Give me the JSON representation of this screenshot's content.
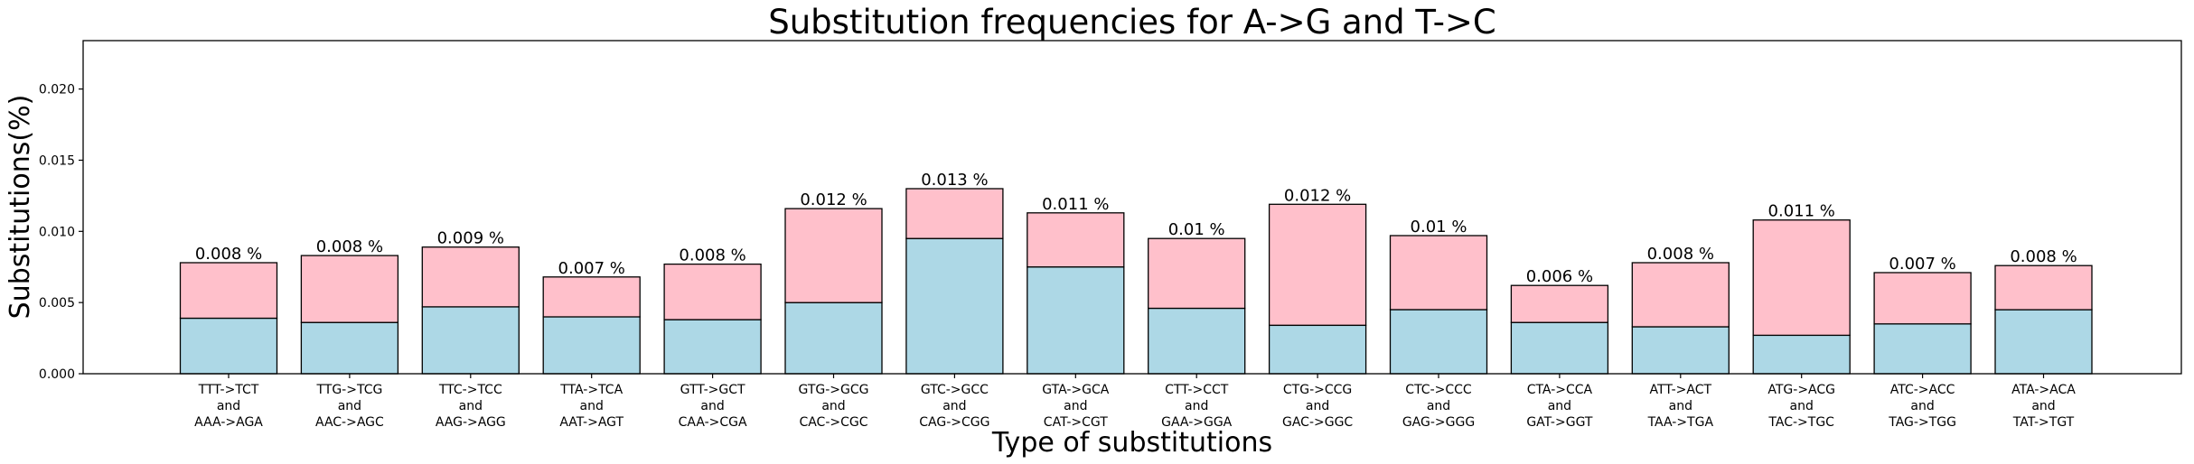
{
  "chart_data": {
    "type": "bar",
    "stacked": true,
    "title": "Substitution frequencies for A->G and T->C",
    "xlabel": "Type of substitutions",
    "ylabel": "Substitutions(%)",
    "ylim": [
      0,
      0.0234
    ],
    "yticks": [
      "0.000",
      "0.005",
      "0.010",
      "0.015",
      "0.020"
    ],
    "ytick_values": [
      0,
      0.005,
      0.01,
      0.015,
      0.02
    ],
    "grid": false,
    "categories": [
      [
        "TTT->TCT",
        "and",
        "AAA->AGA"
      ],
      [
        "TTG->TCG",
        "and",
        "AAC->AGC"
      ],
      [
        "TTC->TCC",
        "and",
        "AAG->AGG"
      ],
      [
        "TTA->TCA",
        "and",
        "AAT->AGT"
      ],
      [
        "GTT->GCT",
        "and",
        "CAA->CGA"
      ],
      [
        "GTG->GCG",
        "and",
        "CAC->CGC"
      ],
      [
        "GTC->GCC",
        "and",
        "CAG->CGG"
      ],
      [
        "GTA->GCA",
        "and",
        "CAT->CGT"
      ],
      [
        "CTT->CCT",
        "and",
        "GAA->GGA"
      ],
      [
        "CTG->CCG",
        "and",
        "GAC->GGC"
      ],
      [
        "CTC->CCC",
        "and",
        "GAG->GGG"
      ],
      [
        "CTA->CCA",
        "and",
        "GAT->GGT"
      ],
      [
        "ATT->ACT",
        "and",
        "TAA->TGA"
      ],
      [
        "ATG->ACG",
        "and",
        "TAC->TGC"
      ],
      [
        "ATC->ACC",
        "and",
        "TAG->TGG"
      ],
      [
        "ATA->ACA",
        "and",
        "TAT->TGT"
      ]
    ],
    "series": [
      {
        "color": "#add8e6",
        "values": [
          0.0039,
          0.0036,
          0.0047,
          0.004,
          0.0038,
          0.005,
          0.0095,
          0.0075,
          0.0046,
          0.0034,
          0.0045,
          0.0036,
          0.0033,
          0.0027,
          0.0035,
          0.0045
        ]
      },
      {
        "color": "#ffc0cb",
        "values": [
          0.0039,
          0.0047,
          0.0042,
          0.0028,
          0.0039,
          0.0066,
          0.0035,
          0.0038,
          0.0049,
          0.0085,
          0.0052,
          0.0026,
          0.0045,
          0.0081,
          0.0036,
          0.0031
        ]
      }
    ],
    "totals": [
      0.0078,
      0.0083,
      0.0089,
      0.0068,
      0.0077,
      0.0116,
      0.013,
      0.0113,
      0.0095,
      0.0119,
      0.0097,
      0.0062,
      0.0078,
      0.0108,
      0.0071,
      0.0076
    ],
    "data_labels": [
      "0.008 %",
      "0.008 %",
      "0.009 %",
      "0.007 %",
      "0.008 %",
      "0.012 %",
      "0.013 %",
      "0.011 %",
      "0.01 %",
      "0.012 %",
      "0.01 %",
      "0.006 %",
      "0.008 %",
      "0.011 %",
      "0.007 %",
      "0.008 %"
    ]
  }
}
